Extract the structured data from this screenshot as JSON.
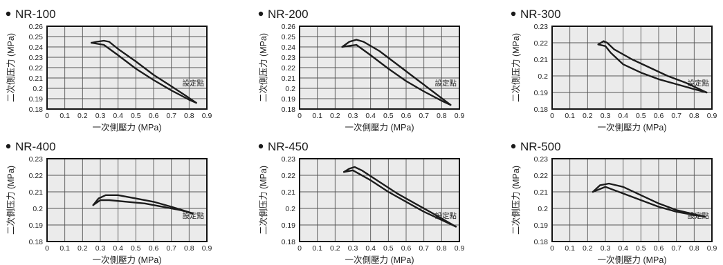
{
  "chart_data": [
    {
      "type": "line",
      "title": "NR-100",
      "xlabel": "一次側壓力 (MPa)",
      "ylabel": "二次側压力 (MPa)",
      "annotation": "設定點",
      "xlim": [
        0,
        0.9
      ],
      "ylim": [
        0.18,
        0.26
      ],
      "xticks": [
        "0",
        "0.1",
        "0.2",
        "0.3",
        "0.4",
        "0.5",
        "0.6",
        "0.7",
        "0.8",
        "0.9"
      ],
      "yticks": [
        "0.18",
        "0.19",
        "0.2",
        "0.21",
        "0.22",
        "0.23",
        "0.24",
        "0.25",
        "0.26"
      ],
      "grid": true,
      "series": [
        {
          "points": [
            [
              0.25,
              0.244
            ],
            [
              0.28,
              0.245
            ],
            [
              0.32,
              0.246
            ],
            [
              0.35,
              0.245
            ],
            [
              0.4,
              0.238
            ],
            [
              0.5,
              0.226
            ],
            [
              0.6,
              0.213
            ],
            [
              0.7,
              0.202
            ],
            [
              0.78,
              0.193
            ],
            [
              0.84,
              0.186
            ]
          ]
        },
        {
          "points": [
            [
              0.84,
              0.186
            ],
            [
              0.8,
              0.189
            ],
            [
              0.7,
              0.198
            ],
            [
              0.6,
              0.208
            ],
            [
              0.5,
              0.219
            ],
            [
              0.4,
              0.232
            ],
            [
              0.32,
              0.242
            ],
            [
              0.25,
              0.244
            ]
          ]
        }
      ]
    },
    {
      "type": "line",
      "title": "NR-200",
      "xlabel": "一次側壓力 (MPa)",
      "ylabel": "二次側压力 (MPa)",
      "annotation": "設定點",
      "xlim": [
        0,
        0.9
      ],
      "ylim": [
        0.18,
        0.26
      ],
      "xticks": [
        "0",
        "0.1",
        "0.2",
        "0.3",
        "0.4",
        "0.5",
        "0.6",
        "0.7",
        "0.8",
        "0.9"
      ],
      "yticks": [
        "0.18",
        "0.19",
        "0.2",
        "0.21",
        "0.22",
        "0.23",
        "0.24",
        "0.25",
        "0.26"
      ],
      "grid": true,
      "series": [
        {
          "points": [
            [
              0.24,
              0.24
            ],
            [
              0.28,
              0.245
            ],
            [
              0.32,
              0.247
            ],
            [
              0.36,
              0.245
            ],
            [
              0.45,
              0.236
            ],
            [
              0.55,
              0.223
            ],
            [
              0.65,
              0.21
            ],
            [
              0.75,
              0.197
            ],
            [
              0.85,
              0.184
            ]
          ]
        },
        {
          "points": [
            [
              0.85,
              0.184
            ],
            [
              0.8,
              0.188
            ],
            [
              0.7,
              0.197
            ],
            [
              0.6,
              0.207
            ],
            [
              0.5,
              0.219
            ],
            [
              0.4,
              0.232
            ],
            [
              0.32,
              0.242
            ],
            [
              0.24,
              0.24
            ]
          ]
        }
      ]
    },
    {
      "type": "line",
      "title": "NR-300",
      "xlabel": "一次側壓力 (MPa)",
      "ylabel": "二次側压力 (MPa)",
      "annotation": "設定點",
      "xlim": [
        0,
        0.9
      ],
      "ylim": [
        0.18,
        0.23
      ],
      "xticks": [
        "0",
        "0.1",
        "0.2",
        "0.3",
        "0.4",
        "0.5",
        "0.6",
        "0.7",
        "0.8",
        "0.9"
      ],
      "yticks": [
        "0.18",
        "0.19",
        "0.2",
        "0.21",
        "0.22",
        "0.23"
      ],
      "grid": true,
      "series": [
        {
          "points": [
            [
              0.26,
              0.219
            ],
            [
              0.29,
              0.221
            ],
            [
              0.31,
              0.22
            ],
            [
              0.35,
              0.216
            ],
            [
              0.45,
              0.21
            ],
            [
              0.55,
              0.205
            ],
            [
              0.65,
              0.2
            ],
            [
              0.75,
              0.196
            ],
            [
              0.87,
              0.19
            ]
          ]
        },
        {
          "points": [
            [
              0.87,
              0.19
            ],
            [
              0.8,
              0.192
            ],
            [
              0.7,
              0.195
            ],
            [
              0.6,
              0.198
            ],
            [
              0.5,
              0.202
            ],
            [
              0.4,
              0.207
            ],
            [
              0.33,
              0.214
            ],
            [
              0.3,
              0.218
            ],
            [
              0.26,
              0.219
            ]
          ]
        }
      ]
    },
    {
      "type": "line",
      "title": "NR-400",
      "xlabel": "一次側壓力 (MPa)",
      "ylabel": "二次側压力 (MPa)",
      "annotation": "設定點",
      "xlim": [
        0,
        0.9
      ],
      "ylim": [
        0.18,
        0.23
      ],
      "xticks": [
        "0",
        "0.1",
        "0.2",
        "0.3",
        "0.4",
        "0.5",
        "0.6",
        "0.7",
        "0.8",
        "0.9"
      ],
      "yticks": [
        "0.18",
        "0.19",
        "0.2",
        "0.21",
        "0.22",
        "0.23"
      ],
      "grid": true,
      "series": [
        {
          "points": [
            [
              0.26,
              0.202
            ],
            [
              0.29,
              0.206
            ],
            [
              0.33,
              0.208
            ],
            [
              0.4,
              0.208
            ],
            [
              0.5,
              0.206
            ],
            [
              0.6,
              0.204
            ],
            [
              0.7,
              0.201
            ],
            [
              0.82,
              0.197
            ]
          ]
        },
        {
          "points": [
            [
              0.82,
              0.197
            ],
            [
              0.75,
              0.199
            ],
            [
              0.65,
              0.201
            ],
            [
              0.55,
              0.203
            ],
            [
              0.45,
              0.204
            ],
            [
              0.35,
              0.205
            ],
            [
              0.3,
              0.205
            ],
            [
              0.26,
              0.202
            ]
          ]
        }
      ]
    },
    {
      "type": "line",
      "title": "NR-450",
      "xlabel": "一次側壓力 (MPa)",
      "ylabel": "二次側压力 (MPa)",
      "annotation": "設定點",
      "xlim": [
        0,
        0.9
      ],
      "ylim": [
        0.18,
        0.23
      ],
      "xticks": [
        "0",
        "0.1",
        "0.2",
        "0.3",
        "0.4",
        "0.5",
        "0.6",
        "0.7",
        "0.8",
        "0.9"
      ],
      "yticks": [
        "0.18",
        "0.19",
        "0.2",
        "0.21",
        "0.22",
        "0.23"
      ],
      "grid": true,
      "series": [
        {
          "points": [
            [
              0.25,
              0.222
            ],
            [
              0.28,
              0.224
            ],
            [
              0.31,
              0.225
            ],
            [
              0.35,
              0.223
            ],
            [
              0.45,
              0.216
            ],
            [
              0.55,
              0.209
            ],
            [
              0.65,
              0.203
            ],
            [
              0.75,
              0.197
            ],
            [
              0.88,
              0.189
            ]
          ]
        },
        {
          "points": [
            [
              0.88,
              0.189
            ],
            [
              0.8,
              0.193
            ],
            [
              0.7,
              0.198
            ],
            [
              0.6,
              0.204
            ],
            [
              0.5,
              0.21
            ],
            [
              0.4,
              0.217
            ],
            [
              0.3,
              0.223
            ],
            [
              0.25,
              0.222
            ]
          ]
        }
      ]
    },
    {
      "type": "line",
      "title": "NR-500",
      "xlabel": "一次側壓力 (MPa)",
      "ylabel": "二次側压力 (MPa)",
      "annotation": "設定點",
      "xlim": [
        0,
        0.9
      ],
      "ylim": [
        0.18,
        0.23
      ],
      "xticks": [
        "0",
        "0.1",
        "0.2",
        "0.3",
        "0.4",
        "0.5",
        "0.6",
        "0.7",
        "0.8",
        "0.9"
      ],
      "yticks": [
        "0.18",
        "0.19",
        "0.2",
        "0.21",
        "0.22",
        "0.23"
      ],
      "grid": true,
      "series": [
        {
          "points": [
            [
              0.23,
              0.21
            ],
            [
              0.27,
              0.214
            ],
            [
              0.32,
              0.215
            ],
            [
              0.4,
              0.213
            ],
            [
              0.5,
              0.208
            ],
            [
              0.6,
              0.203
            ],
            [
              0.7,
              0.199
            ],
            [
              0.86,
              0.195
            ]
          ]
        },
        {
          "points": [
            [
              0.86,
              0.195
            ],
            [
              0.8,
              0.196
            ],
            [
              0.7,
              0.198
            ],
            [
              0.6,
              0.201
            ],
            [
              0.5,
              0.205
            ],
            [
              0.4,
              0.209
            ],
            [
              0.3,
              0.213
            ],
            [
              0.23,
              0.21
            ]
          ]
        }
      ]
    }
  ]
}
